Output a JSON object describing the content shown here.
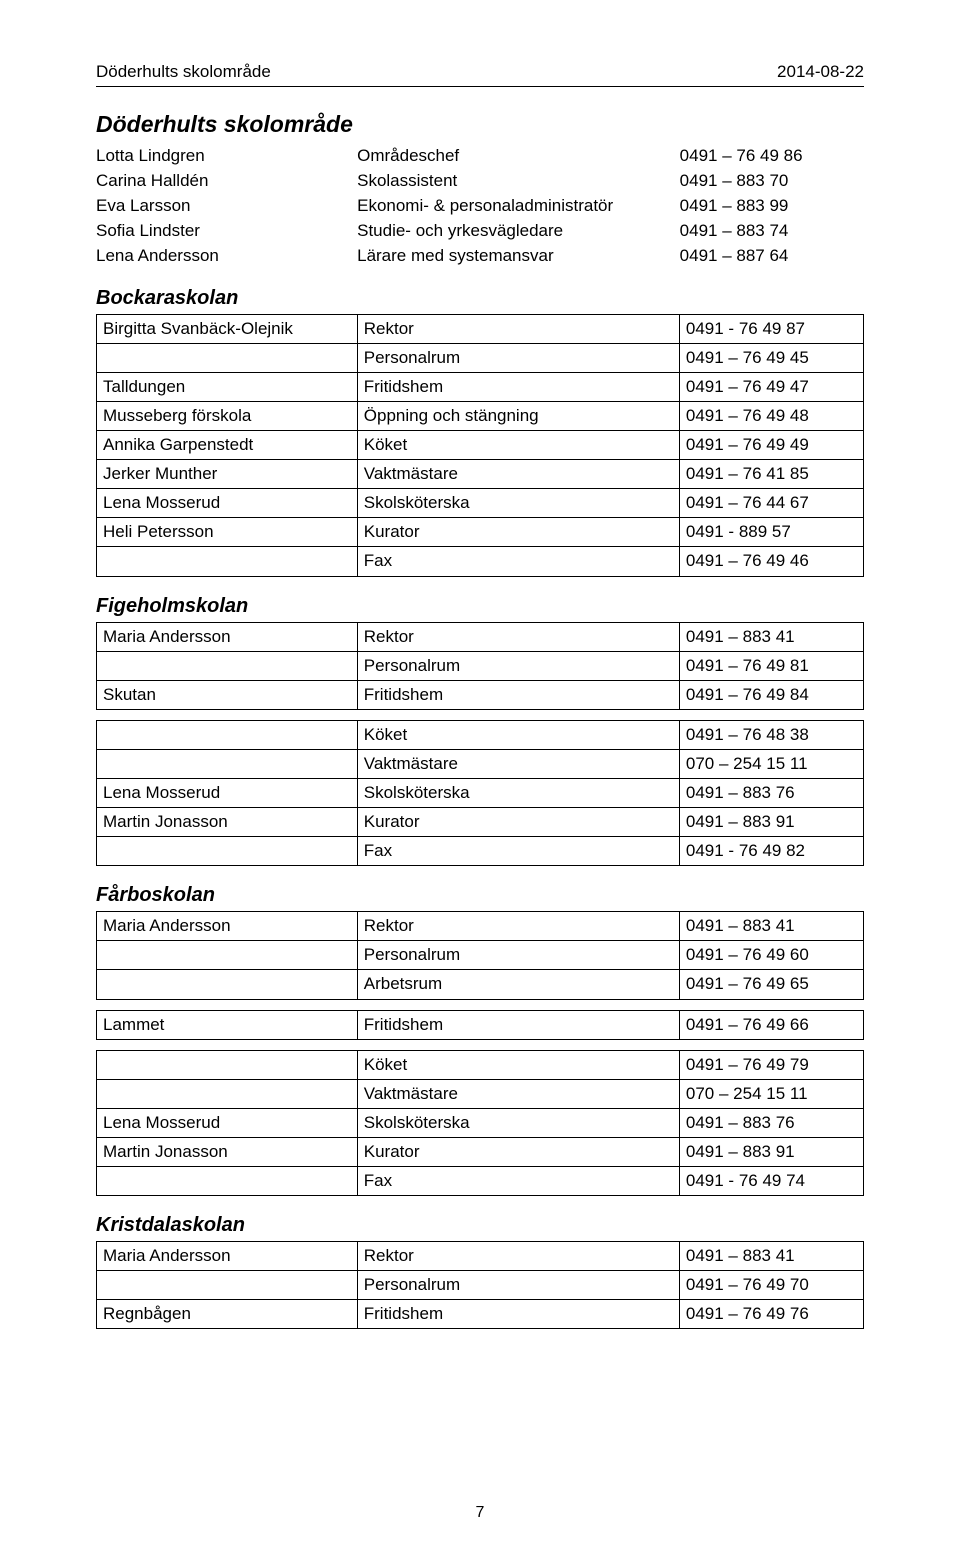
{
  "header": {
    "left": "Döderhults skolområde",
    "right": "2014-08-22"
  },
  "page_title": "Döderhults skolområde",
  "intro_rows": [
    [
      "Lotta Lindgren",
      "Områdeschef",
      "0491 – 76 49 86"
    ],
    [
      "Carina Halldén",
      "Skolassistent",
      "0491 – 883 70"
    ],
    [
      "Eva Larsson",
      "Ekonomi- & personaladministratör",
      "0491 – 883 99"
    ],
    [
      "Sofia Lindster",
      "Studie- och yrkesvägledare",
      "0491 – 883 74"
    ],
    [
      "Lena Andersson",
      "Lärare med systemansvar",
      "0491 – 887 64"
    ]
  ],
  "sections": [
    {
      "title": "Bockaraskolan",
      "rows": [
        [
          "Birgitta Svanbäck-Olejnik",
          "Rektor",
          "0491 - 76 49 87"
        ],
        [
          "",
          "Personalrum",
          "0491 – 76 49 45"
        ],
        [
          "Talldungen",
          "Fritidshem",
          "0491 – 76 49 47"
        ],
        [
          "Musseberg förskola",
          "Öppning och stängning",
          "0491 – 76 49 48"
        ],
        [
          "Annika Garpenstedt",
          "Köket",
          "0491 – 76 49 49"
        ],
        [
          "Jerker Munther",
          "Vaktmästare",
          "0491 – 76 41 85"
        ],
        [
          "Lena Mosserud",
          "Skolsköterska",
          "0491 – 76 44 67"
        ],
        [
          "Heli Petersson",
          "Kurator",
          "0491 - 889 57"
        ],
        [
          "",
          "Fax",
          "0491 – 76 49 46"
        ]
      ]
    },
    {
      "title": "Figeholmskolan",
      "rows": [
        [
          "Maria Andersson",
          "Rektor",
          "0491 – 883 41"
        ],
        [
          "",
          "Personalrum",
          "0491 – 76 49 81"
        ],
        [
          "Skutan",
          "Fritidshem",
          "0491 – 76 49 84"
        ]
      ],
      "rows2": [
        [
          "",
          "Köket",
          "0491 – 76 48 38"
        ],
        [
          "",
          "Vaktmästare",
          "070 – 254 15 11"
        ],
        [
          "Lena Mosserud",
          "Skolsköterska",
          "0491 – 883 76"
        ],
        [
          "Martin Jonasson",
          "Kurator",
          "0491 – 883 91"
        ],
        [
          "",
          "Fax",
          "0491 - 76 49 82"
        ]
      ]
    },
    {
      "title": "Fårboskolan",
      "rows": [
        [
          "Maria Andersson",
          "Rektor",
          "0491 – 883 41"
        ],
        [
          "",
          "Personalrum",
          "0491 – 76 49 60"
        ],
        [
          "",
          "Arbetsrum",
          "0491 – 76 49 65"
        ]
      ],
      "rows2": [
        [
          "Lammet",
          "Fritidshem",
          "0491 – 76 49 66"
        ]
      ],
      "rows3": [
        [
          "",
          "Köket",
          "0491 – 76 49 79"
        ],
        [
          "",
          "Vaktmästare",
          "070 – 254 15 11"
        ],
        [
          "Lena Mosserud",
          "Skolsköterska",
          "0491 – 883 76"
        ],
        [
          "Martin Jonasson",
          "Kurator",
          "0491 – 883 91"
        ],
        [
          "",
          "Fax",
          "0491 - 76 49 74"
        ]
      ]
    },
    {
      "title": "Kristdalaskolan",
      "rows": [
        [
          "Maria Andersson",
          "Rektor",
          "0491 – 883 41"
        ],
        [
          "",
          "Personalrum",
          "0491 – 76 49 70"
        ],
        [
          "Regnbågen",
          "Fritidshem",
          "0491 – 76 49 76"
        ]
      ]
    }
  ],
  "page_number": "7"
}
